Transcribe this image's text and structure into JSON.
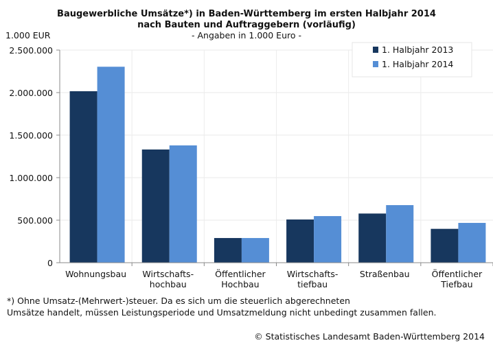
{
  "chart_data": {
    "type": "bar",
    "title_line1": "Baugewerbliche Umsätze*) in Baden-Württemberg im ersten Halbjahr 2014",
    "title_line2": "nach Bauten und Auftraggebern (vorläufig)",
    "subtitle": "- Angaben in 1.000 Euro -",
    "ylabel": "1.000 EUR",
    "xlabel": "",
    "ylim": [
      0,
      2500000
    ],
    "yticks": [
      0,
      500000,
      1000000,
      1500000,
      2000000,
      2500000
    ],
    "ytick_labels": [
      "0",
      "500.000",
      "1.000.000",
      "1.500.000",
      "2.000.000",
      "2.500.000"
    ],
    "grid": true,
    "legend_position": "top-right",
    "categories": [
      [
        "Wohnungsbau"
      ],
      [
        "Wirtschafts-",
        "hochbau"
      ],
      [
        "Öffentlicher",
        "Hochbau"
      ],
      [
        "Wirtschafts-",
        "tiefbau"
      ],
      [
        "Straßenbau"
      ],
      [
        "Öffentlicher",
        "Tiefbau"
      ]
    ],
    "series": [
      {
        "name": "1. Halbjahr 2013",
        "color": "#17375e",
        "values": [
          2016000,
          1331000,
          290000,
          508000,
          578000,
          398000
        ]
      },
      {
        "name": "1. Halbjahr 2014",
        "color": "#558ed5",
        "values": [
          2304000,
          1379000,
          290000,
          548000,
          677000,
          468000
        ]
      }
    ]
  },
  "footnote_line1": "*) Ohne Umsatz-(Mehrwert-)steuer. Da es sich um die steuerlich abgerechneten",
  "footnote_line2": "Umsätze handelt, müssen Leistungsperiode und Umsatzmeldung nicht unbedingt zusammen fallen.",
  "source": "© Statistisches Landesamt Baden-Württemberg 2014"
}
